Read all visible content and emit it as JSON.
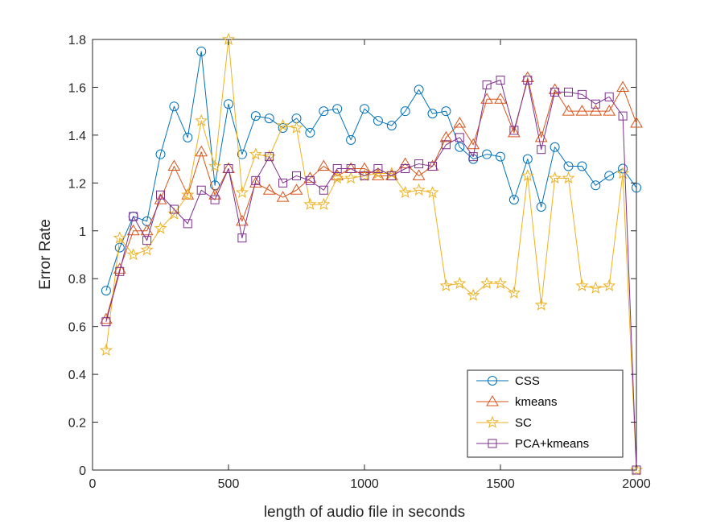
{
  "chart_data": {
    "type": "line",
    "title": "",
    "xlabel": "length of audio file in seconds",
    "ylabel": "Error Rate",
    "xlim": [
      0,
      2000
    ],
    "ylim": [
      0,
      1.8
    ],
    "xticks": [
      0,
      500,
      1000,
      1500,
      2000
    ],
    "yticks": [
      0,
      0.2,
      0.4,
      0.6,
      0.8,
      1,
      1.2,
      1.4,
      1.6,
      1.8
    ],
    "xtick_labels": [
      "0",
      "500",
      "1000",
      "1500",
      "2000"
    ],
    "ytick_labels": [
      "0",
      "0.2",
      "0.4",
      "0.6",
      "0.8",
      "1",
      "1.2",
      "1.4",
      "1.6",
      "1.8"
    ],
    "grid": false,
    "legend_position": "bottom-right",
    "x": [
      50,
      100,
      150,
      200,
      250,
      300,
      350,
      400,
      450,
      500,
      550,
      600,
      650,
      700,
      750,
      800,
      850,
      900,
      950,
      1000,
      1050,
      1100,
      1150,
      1200,
      1250,
      1300,
      1350,
      1400,
      1450,
      1500,
      1550,
      1600,
      1650,
      1700,
      1750,
      1800,
      1850,
      1900,
      1950,
      2000
    ],
    "series": [
      {
        "name": "CSS",
        "color": "#0072BD",
        "marker": "circle",
        "values": [
          0.75,
          0.93,
          1.06,
          1.04,
          1.32,
          1.52,
          1.39,
          1.75,
          1.19,
          1.53,
          1.32,
          1.48,
          1.47,
          1.43,
          1.47,
          1.41,
          1.5,
          1.51,
          1.38,
          1.51,
          1.46,
          1.44,
          1.5,
          1.59,
          1.49,
          1.5,
          1.35,
          1.3,
          1.32,
          1.31,
          1.13,
          1.3,
          1.1,
          1.35,
          1.27,
          1.27,
          1.19,
          1.23,
          1.26,
          1.18
        ]
      },
      {
        "name": "kmeans",
        "color": "#D95319",
        "marker": "triangle",
        "values": [
          0.63,
          0.84,
          1.0,
          1.0,
          1.13,
          1.27,
          1.15,
          1.33,
          1.15,
          1.26,
          1.04,
          1.2,
          1.17,
          1.14,
          1.17,
          1.22,
          1.27,
          1.23,
          1.26,
          1.26,
          1.23,
          1.23,
          1.28,
          1.23,
          1.27,
          1.39,
          1.45,
          1.36,
          1.55,
          1.55,
          1.41,
          1.64,
          1.39,
          1.59,
          1.5,
          1.5,
          1.5,
          1.5,
          1.6,
          1.45
        ]
      },
      {
        "name": "SC",
        "color": "#EDB120",
        "marker": "star",
        "values": [
          0.5,
          0.97,
          0.9,
          0.92,
          1.01,
          1.07,
          1.15,
          1.46,
          1.27,
          1.8,
          1.16,
          1.32,
          1.31,
          1.44,
          1.43,
          1.11,
          1.11,
          1.22,
          1.22,
          1.23,
          1.24,
          1.24,
          1.16,
          1.17,
          1.16,
          0.77,
          0.78,
          0.73,
          0.78,
          0.78,
          0.74,
          1.23,
          0.69,
          1.22,
          1.22,
          0.77,
          0.76,
          0.77,
          1.24,
          0.0
        ]
      },
      {
        "name": "PCA+kmeans",
        "color": "#7E2F8E",
        "marker": "square",
        "values": [
          0.62,
          0.83,
          1.06,
          0.96,
          1.15,
          1.09,
          1.03,
          1.17,
          1.13,
          1.26,
          0.97,
          1.21,
          1.31,
          1.2,
          1.23,
          1.21,
          1.17,
          1.26,
          1.26,
          1.23,
          1.26,
          1.23,
          1.26,
          1.28,
          1.27,
          1.36,
          1.39,
          1.31,
          1.61,
          1.63,
          1.42,
          1.63,
          1.34,
          1.58,
          1.58,
          1.57,
          1.53,
          1.56,
          1.48,
          0.0
        ]
      }
    ]
  }
}
